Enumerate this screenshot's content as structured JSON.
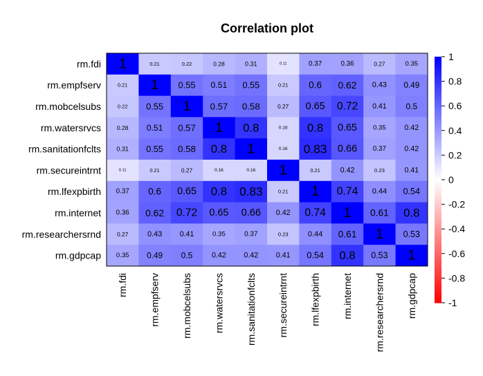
{
  "chart_data": {
    "type": "heatmap",
    "title": "Correlation plot",
    "variables": [
      "rm.fdi",
      "rm.empfserv",
      "rm.mobcelsubs",
      "rm.watersrvcs",
      "rm.sanitationfclts",
      "rm.secureintrnt",
      "rm.lfexpbirth",
      "rm.internet",
      "rm.researchersrnd",
      "rm.gdpcap"
    ],
    "matrix": [
      [
        1,
        0.21,
        0.22,
        0.28,
        0.31,
        0.11,
        0.37,
        0.36,
        0.27,
        0.35
      ],
      [
        0.21,
        1,
        0.55,
        0.51,
        0.55,
        0.21,
        0.6,
        0.62,
        0.43,
        0.49
      ],
      [
        0.22,
        0.55,
        1,
        0.57,
        0.58,
        0.27,
        0.65,
        0.72,
        0.41,
        0.5
      ],
      [
        0.28,
        0.51,
        0.57,
        1,
        0.8,
        0.16,
        0.8,
        0.65,
        0.35,
        0.42
      ],
      [
        0.31,
        0.55,
        0.58,
        0.8,
        1,
        0.16,
        0.83,
        0.66,
        0.37,
        0.42
      ],
      [
        0.11,
        0.21,
        0.27,
        0.16,
        0.16,
        1,
        0.21,
        0.42,
        0.23,
        0.41
      ],
      [
        0.37,
        0.6,
        0.65,
        0.8,
        0.83,
        0.21,
        1,
        0.74,
        0.44,
        0.54
      ],
      [
        0.36,
        0.62,
        0.72,
        0.65,
        0.66,
        0.42,
        0.74,
        1,
        0.61,
        0.8
      ],
      [
        0.27,
        0.43,
        0.41,
        0.35,
        0.37,
        0.23,
        0.44,
        0.61,
        1,
        0.53
      ],
      [
        0.35,
        0.49,
        0.5,
        0.42,
        0.42,
        0.41,
        0.54,
        0.8,
        0.53,
        1
      ]
    ],
    "color_scale": {
      "range": [
        -1,
        1
      ],
      "ticks": [
        1,
        0.8,
        0.6,
        0.4,
        0.2,
        0,
        -0.2,
        -0.4,
        -0.6,
        -0.8,
        -1
      ],
      "tick_labels": [
        "1",
        "0.8",
        "0.6",
        "0.4",
        "0.2",
        "0",
        "-0.2",
        "-0.4",
        "-0.6",
        "-0.8",
        "-1"
      ],
      "low_color": "#ff0000",
      "mid_color": "#ffffff",
      "high_color": "#0000ff"
    },
    "legend_position": "right",
    "grid": false
  }
}
